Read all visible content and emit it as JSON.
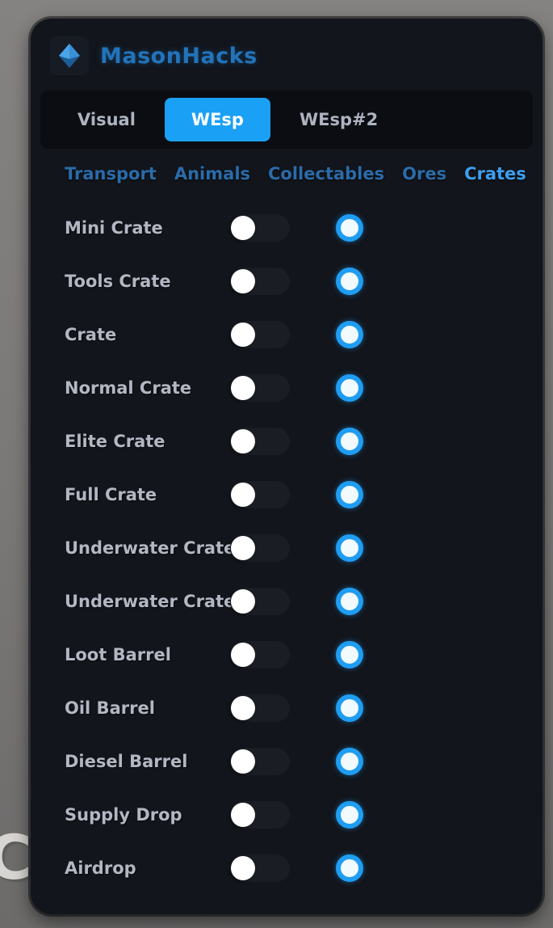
{
  "app": {
    "title": "MasonHacks",
    "logo_icon": "gem-diamond-icon"
  },
  "tabs": [
    {
      "label": "Visual",
      "active": false
    },
    {
      "label": "WEsp",
      "active": true
    },
    {
      "label": "WEsp#2",
      "active": false
    }
  ],
  "categories": [
    {
      "label": "Transport",
      "active": false
    },
    {
      "label": "Animals",
      "active": false
    },
    {
      "label": "Collectables",
      "active": false
    },
    {
      "label": "Ores",
      "active": false
    },
    {
      "label": "Crates",
      "active": true
    }
  ],
  "items": [
    {
      "label": "Mini Crate",
      "enabled": false,
      "color": "#1f9df2"
    },
    {
      "label": "Tools Crate",
      "enabled": false,
      "color": "#1f9df2"
    },
    {
      "label": "Crate",
      "enabled": false,
      "color": "#1f9df2"
    },
    {
      "label": "Normal Crate",
      "enabled": false,
      "color": "#1f9df2"
    },
    {
      "label": "Elite Crate",
      "enabled": false,
      "color": "#1f9df2"
    },
    {
      "label": "Full Crate",
      "enabled": false,
      "color": "#1f9df2"
    },
    {
      "label": "Underwater Crate",
      "enabled": false,
      "color": "#1f9df2"
    },
    {
      "label": "Underwater Crate",
      "enabled": false,
      "color": "#1f9df2"
    },
    {
      "label": "Loot Barrel",
      "enabled": false,
      "color": "#1f9df2"
    },
    {
      "label": "Oil Barrel",
      "enabled": false,
      "color": "#1f9df2"
    },
    {
      "label": "Diesel Barrel",
      "enabled": false,
      "color": "#1f9df2"
    },
    {
      "label": "Supply Drop",
      "enabled": false,
      "color": "#1f9df2"
    },
    {
      "label": "Airdrop",
      "enabled": false,
      "color": "#1f9df2"
    }
  ],
  "background": {
    "partial_text": "CT"
  },
  "colors": {
    "accent": "#1aa0f5",
    "swatch_ring": "#1f9df2",
    "window_bg": "#12151b",
    "tabbar_bg": "#0b0d12",
    "title_blue": "#2273ba",
    "category_inactive": "#2b6ba8",
    "category_active": "#3e9ff0",
    "label_gray": "#b3b7c3",
    "desktop_gray": "#7b7978"
  }
}
